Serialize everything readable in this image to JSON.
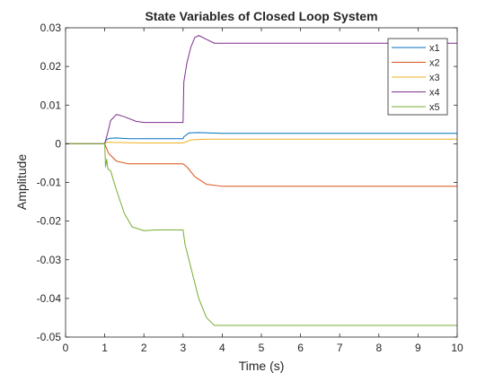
{
  "chart_data": {
    "type": "line",
    "title": "State Variables of Closed Loop System",
    "xlabel": "Time (s)",
    "ylabel": "Amplitude",
    "xlim": [
      0,
      10
    ],
    "ylim": [
      -0.05,
      0.03
    ],
    "xticks": [
      "0",
      "1",
      "2",
      "3",
      "4",
      "5",
      "6",
      "7",
      "8",
      "9",
      "10"
    ],
    "yticks": [
      "0.03",
      "0.02",
      "0.01",
      "0",
      "-0.01",
      "-0.02",
      "-0.03",
      "-0.04",
      "-0.05"
    ],
    "grid": false,
    "legend_position": "top-right",
    "series": [
      {
        "name": "x1",
        "color": "#0072BD",
        "points": [
          [
            0,
            0
          ],
          [
            1,
            0
          ],
          [
            1.02,
            0.0008
          ],
          [
            1.1,
            0.0014
          ],
          [
            1.3,
            0.0015
          ],
          [
            1.6,
            0.0013
          ],
          [
            2,
            0.0013
          ],
          [
            3,
            0.0013
          ],
          [
            3.02,
            0.0018
          ],
          [
            3.15,
            0.0028
          ],
          [
            3.4,
            0.0029
          ],
          [
            4,
            0.0027
          ],
          [
            10,
            0.0027
          ]
        ]
      },
      {
        "name": "x2",
        "color": "#D95319",
        "points": [
          [
            0,
            0
          ],
          [
            1,
            0
          ],
          [
            1.1,
            -0.0025
          ],
          [
            1.3,
            -0.0045
          ],
          [
            1.6,
            -0.0052
          ],
          [
            2,
            -0.0052
          ],
          [
            3,
            -0.0052
          ],
          [
            3.1,
            -0.006
          ],
          [
            3.3,
            -0.0085
          ],
          [
            3.6,
            -0.0105
          ],
          [
            4,
            -0.011
          ],
          [
            4.5,
            -0.011
          ],
          [
            10,
            -0.011
          ]
        ]
      },
      {
        "name": "x3",
        "color": "#EDB120",
        "points": [
          [
            0,
            0
          ],
          [
            1,
            0
          ],
          [
            1.05,
            0.0004
          ],
          [
            2,
            0.0002
          ],
          [
            3,
            0.0002
          ],
          [
            3.2,
            0.001
          ],
          [
            3.6,
            0.0012
          ],
          [
            10,
            0.0012
          ]
        ]
      },
      {
        "name": "x4",
        "color": "#7E2F8E",
        "points": [
          [
            0,
            0
          ],
          [
            1,
            0
          ],
          [
            1.08,
            0.003
          ],
          [
            1.15,
            0.006
          ],
          [
            1.3,
            0.0076
          ],
          [
            1.5,
            0.007
          ],
          [
            1.8,
            0.0058
          ],
          [
            2,
            0.0055
          ],
          [
            3,
            0.0055
          ],
          [
            3.02,
            0.016
          ],
          [
            3.1,
            0.021
          ],
          [
            3.2,
            0.025
          ],
          [
            3.3,
            0.0275
          ],
          [
            3.4,
            0.028
          ],
          [
            3.6,
            0.027
          ],
          [
            3.8,
            0.026
          ],
          [
            4.5,
            0.026
          ],
          [
            10,
            0.026
          ]
        ]
      },
      {
        "name": "x5",
        "color": "#77AC30",
        "points": [
          [
            0,
            0
          ],
          [
            1,
            0
          ],
          [
            1.02,
            -0.006
          ],
          [
            1.05,
            -0.004
          ],
          [
            1.08,
            -0.0065
          ],
          [
            1.15,
            -0.007
          ],
          [
            1.3,
            -0.012
          ],
          [
            1.5,
            -0.018
          ],
          [
            1.7,
            -0.0215
          ],
          [
            2,
            -0.0225
          ],
          [
            2.3,
            -0.0223
          ],
          [
            3,
            -0.0223
          ],
          [
            3.05,
            -0.026
          ],
          [
            3.2,
            -0.032
          ],
          [
            3.4,
            -0.04
          ],
          [
            3.6,
            -0.045
          ],
          [
            3.8,
            -0.047
          ],
          [
            4.2,
            -0.047
          ],
          [
            10,
            -0.047
          ]
        ]
      }
    ]
  }
}
